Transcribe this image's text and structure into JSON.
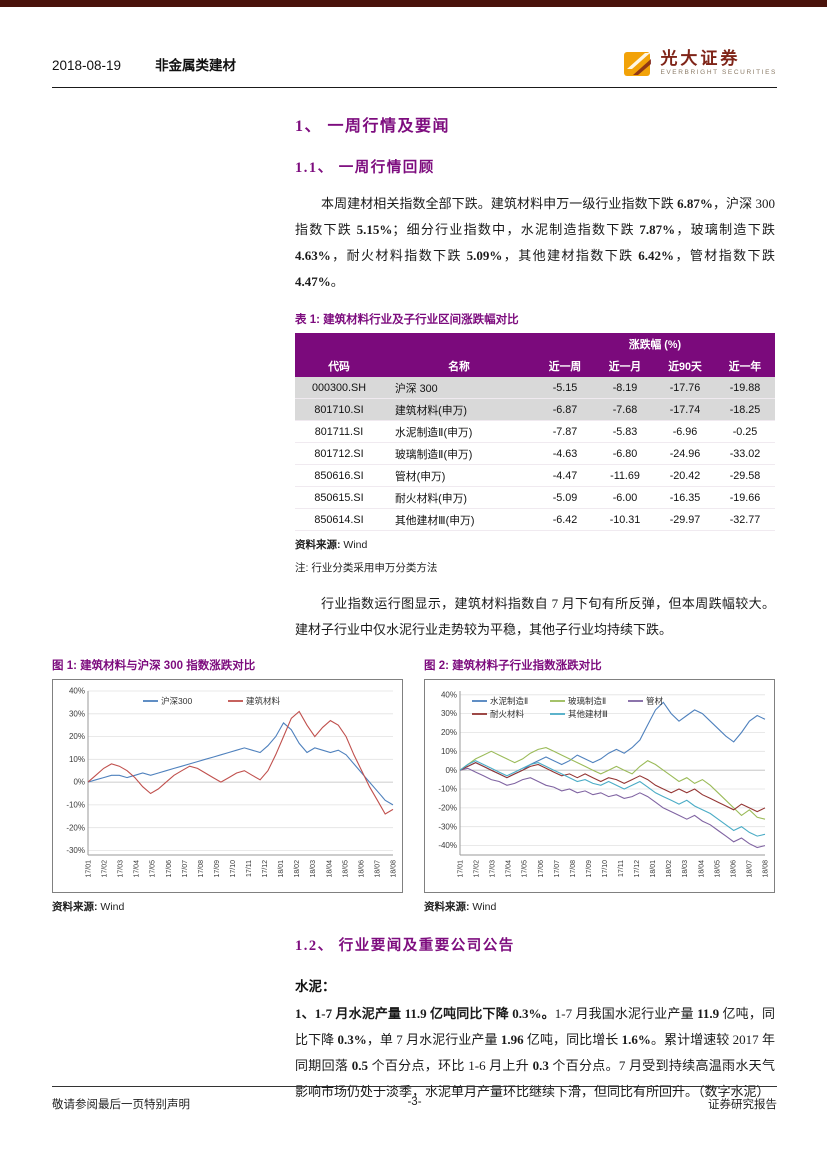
{
  "header": {
    "date": "2018-08-19",
    "category": "非金属类建材"
  },
  "logo": {
    "name": "光大证券",
    "subtitle": "EVERBRIGHT SECURITIES"
  },
  "sections": {
    "s1": "1、 一周行情及要闻",
    "s11": "1.1、 一周行情回顾",
    "s12": "1.2、 行业要闻及重要公司公告"
  },
  "paragraphs": {
    "p1": [
      {
        "t": "本周建材相关指数全部下跌。建筑材料申万一级行业指数下跌 "
      },
      {
        "t": "6.87%",
        "b": true
      },
      {
        "t": "，沪深 300 指数下跌 "
      },
      {
        "t": "5.15%",
        "b": true
      },
      {
        "t": "；细分行业指数中，水泥制造指数下跌 "
      },
      {
        "t": "7.87%",
        "b": true
      },
      {
        "t": "，玻璃制造下跌 "
      },
      {
        "t": "4.63%",
        "b": true
      },
      {
        "t": "，耐火材料指数下跌 "
      },
      {
        "t": "5.09%",
        "b": true
      },
      {
        "t": "，其他建材指数下跌 "
      },
      {
        "t": "6.42%",
        "b": true
      },
      {
        "t": "，管材指数下跌 "
      },
      {
        "t": "4.47%",
        "b": true
      },
      {
        "t": "。"
      }
    ],
    "p2": [
      {
        "t": "行业指数运行图显示，建筑材料指数自 7 月下旬有所反弹，但本周跌幅较大。建材子行业中仅水泥行业走势较为平稳，其他子行业均持续下跌。"
      }
    ],
    "cement_label": "水泥：",
    "cement": [
      {
        "t": "1、1-7 月水泥产量 11.9 亿吨同比下降 0.3%。",
        "b": true
      },
      {
        "t": "1-7 月我国水泥行业产量 "
      },
      {
        "t": "11.9",
        "b": true
      },
      {
        "t": " 亿吨，同比下降 "
      },
      {
        "t": "0.3%",
        "b": true
      },
      {
        "t": "，单 7 月水泥行业产量 "
      },
      {
        "t": "1.96",
        "b": true
      },
      {
        "t": " 亿吨，同比增长 "
      },
      {
        "t": "1.6%",
        "b": true
      },
      {
        "t": "。累计增速较 2017 年同期回落 "
      },
      {
        "t": "0.5",
        "b": true
      },
      {
        "t": " 个百分点，环比 1-6 月上升 "
      },
      {
        "t": "0.3",
        "b": true
      },
      {
        "t": " 个百分点。7 月受到持续高温雨水天气影响市场仍处于淡季，水泥单月产量环比继续下滑，但同比有所回升。（数字水泥）"
      }
    ]
  },
  "table1": {
    "title": "表 1: 建筑材料行业及子行业区间涨跌幅对比",
    "group_header": "涨跌幅 (%)",
    "columns": [
      "代码",
      "名称",
      "近一周",
      "近一月",
      "近90天",
      "近一年"
    ],
    "rows": [
      {
        "code": "000300.SH",
        "name": "沪深 300",
        "w": "-5.15",
        "m": "-8.19",
        "d90": "-17.76",
        "y": "-19.88"
      },
      {
        "code": "801710.SI",
        "name": "建筑材料(申万)",
        "w": "-6.87",
        "m": "-7.68",
        "d90": "-17.74",
        "y": "-18.25"
      },
      {
        "code": "801711.SI",
        "name": "水泥制造Ⅱ(申万)",
        "w": "-7.87",
        "m": "-5.83",
        "d90": "-6.96",
        "y": "-0.25"
      },
      {
        "code": "801712.SI",
        "name": "玻璃制造Ⅱ(申万)",
        "w": "-4.63",
        "m": "-6.80",
        "d90": "-24.96",
        "y": "-33.02"
      },
      {
        "code": "850616.SI",
        "name": "管材(申万)",
        "w": "-4.47",
        "m": "-11.69",
        "d90": "-20.42",
        "y": "-29.58"
      },
      {
        "code": "850615.SI",
        "name": "耐火材料(申万)",
        "w": "-5.09",
        "m": "-6.00",
        "d90": "-16.35",
        "y": "-19.66"
      },
      {
        "code": "850614.SI",
        "name": "其他建材Ⅲ(申万)",
        "w": "-6.42",
        "m": "-10.31",
        "d90": "-29.97",
        "y": "-32.77"
      }
    ],
    "source_label": "资料来源:",
    "source_value": "Wind",
    "note": "注: 行业分类采用申万分类方法"
  },
  "chart_data": [
    {
      "type": "line",
      "title": "图 1: 建筑材料与沪深 300 指数涨跌对比",
      "source_label": "资料来源:",
      "source_value": "Wind",
      "ylim": [
        -32,
        40
      ],
      "ytick": 10,
      "legend_cols": 2,
      "legend_offset": 55,
      "legend_item_w": 85,
      "x_ticklabels": [
        "17/01",
        "17/02",
        "17/03",
        "17/04",
        "17/05",
        "17/06",
        "17/07",
        "17/08",
        "17/09",
        "17/10",
        "17/11",
        "17/12",
        "18/01",
        "18/02",
        "18/03",
        "18/04",
        "18/05",
        "18/06",
        "18/07",
        "18/08"
      ],
      "series": [
        {
          "name": "沪深300",
          "color": "#4f81bd",
          "values": [
            0,
            1,
            2,
            3,
            3,
            2,
            3,
            4,
            3,
            4,
            5,
            6,
            7,
            8,
            9,
            10,
            11,
            12,
            13,
            14,
            15,
            14,
            13,
            16,
            20,
            26,
            23,
            17,
            13,
            15,
            14,
            13,
            14,
            12,
            8,
            4,
            0,
            -4,
            -8,
            -10
          ]
        },
        {
          "name": "建筑材料",
          "color": "#c0504d",
          "values": [
            0,
            3,
            6,
            8,
            7,
            5,
            2,
            -2,
            -5,
            -3,
            0,
            3,
            5,
            7,
            6,
            4,
            2,
            0,
            2,
            4,
            5,
            3,
            1,
            5,
            12,
            20,
            28,
            31,
            25,
            20,
            24,
            27,
            25,
            20,
            12,
            5,
            -2,
            -8,
            -14,
            -12
          ]
        }
      ]
    },
    {
      "type": "line",
      "title": "图 2: 建筑材料子行业指数涨跌对比",
      "source_label": "资料来源:",
      "source_value": "Wind",
      "ylim": [
        -45,
        42
      ],
      "ytick": 10,
      "legend_cols": 3,
      "legend_offset": 12,
      "legend_item_w": 78,
      "x_ticklabels": [
        "17/01",
        "17/02",
        "17/03",
        "17/04",
        "17/05",
        "17/06",
        "17/07",
        "17/08",
        "17/09",
        "17/10",
        "17/11",
        "17/12",
        "18/01",
        "18/02",
        "18/03",
        "18/04",
        "18/05",
        "18/06",
        "18/07",
        "18/08"
      ],
      "series": [
        {
          "name": "水泥制造Ⅱ",
          "color": "#4f81bd",
          "values": [
            0,
            2,
            4,
            2,
            0,
            -2,
            -4,
            -2,
            0,
            3,
            5,
            7,
            5,
            3,
            5,
            8,
            6,
            4,
            6,
            9,
            11,
            9,
            12,
            16,
            24,
            32,
            36,
            30,
            26,
            29,
            32,
            30,
            26,
            22,
            18,
            15,
            20,
            26,
            29,
            27
          ]
        },
        {
          "name": "玻璃制造Ⅱ",
          "color": "#9bbb59",
          "values": [
            0,
            3,
            6,
            8,
            10,
            8,
            6,
            4,
            6,
            9,
            11,
            12,
            10,
            8,
            6,
            4,
            2,
            0,
            -2,
            0,
            2,
            0,
            -2,
            2,
            5,
            3,
            0,
            -3,
            -6,
            -4,
            -7,
            -5,
            -8,
            -12,
            -16,
            -20,
            -24,
            -21,
            -25,
            -26
          ]
        },
        {
          "name": "管材",
          "color": "#8064a2",
          "values": [
            0,
            1,
            -1,
            -3,
            -5,
            -6,
            -8,
            -7,
            -5,
            -4,
            -6,
            -8,
            -9,
            -11,
            -10,
            -12,
            -11,
            -13,
            -12,
            -14,
            -13,
            -15,
            -14,
            -12,
            -14,
            -17,
            -20,
            -22,
            -24,
            -26,
            -24,
            -27,
            -29,
            -32,
            -35,
            -38,
            -36,
            -39,
            -41,
            -40
          ]
        },
        {
          "name": "耐火材料",
          "color": "#943634",
          "values": [
            0,
            2,
            4,
            2,
            0,
            -2,
            -4,
            -2,
            0,
            2,
            3,
            1,
            -1,
            -3,
            -2,
            -4,
            -2,
            -4,
            -6,
            -4,
            -5,
            -7,
            -5,
            -3,
            -5,
            -8,
            -10,
            -12,
            -10,
            -12,
            -10,
            -13,
            -15,
            -17,
            -19,
            -21,
            -18,
            -20,
            -22,
            -20
          ]
        },
        {
          "name": "其他建材Ⅲ",
          "color": "#4bacc6",
          "values": [
            0,
            3,
            5,
            3,
            1,
            -1,
            -3,
            -1,
            1,
            3,
            4,
            2,
            0,
            -2,
            -4,
            -6,
            -5,
            -7,
            -8,
            -6,
            -8,
            -10,
            -8,
            -6,
            -9,
            -12,
            -14,
            -16,
            -18,
            -16,
            -19,
            -21,
            -23,
            -26,
            -29,
            -32,
            -30,
            -33,
            -35,
            -34
          ]
        }
      ]
    }
  ],
  "footer": {
    "left": "敬请参阅最后一页特别声明",
    "center": "-3-",
    "right": "证券研究报告"
  }
}
